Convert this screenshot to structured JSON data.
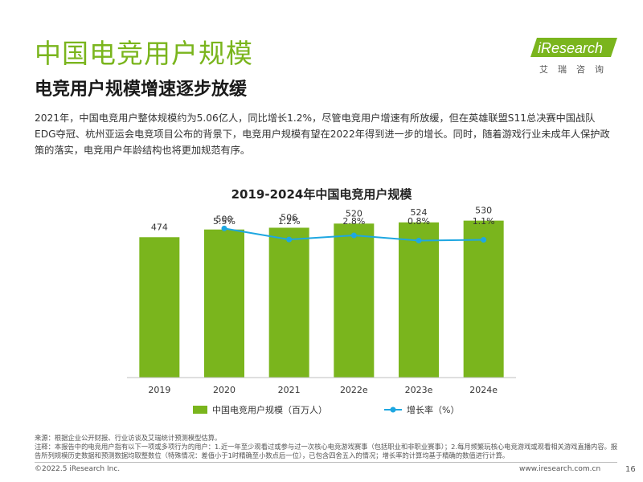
{
  "header": {
    "title": "中国电竞用户规模",
    "subtitle": "电竞用户规模增速逐步放缓"
  },
  "logo": {
    "name": "iResearch",
    "tagline": "艾瑞咨询",
    "brand_color": "#7ab51d"
  },
  "intro_text": "2021年，中国电竞用户整体规模约为5.06亿人，同比增长1.2%，尽管电竞用户增速有所放缓，但在英雄联盟S11总决赛中国战队EDG夺冠、杭州亚运会电竞项目公布的背景下，电竞用户规模有望在2022年得到进一步的增长。同时，随着游戏行业未成年人保护政策的落实，电竞用户年龄结构也将更加规范有序。",
  "chart_data": {
    "type": "bar",
    "title": "2019-2024年中国电竞用户规模",
    "categories": [
      "2019",
      "2020",
      "2021",
      "2022e",
      "2023e",
      "2024e"
    ],
    "series": [
      {
        "name": "中国电竞用户规模（百万人）",
        "type": "bar",
        "values": [
          474,
          500,
          506,
          520,
          524,
          530
        ],
        "labels": [
          "474",
          "500",
          "506",
          "520",
          "524",
          "530"
        ],
        "color": "#7ab51d"
      },
      {
        "name": "增长率（%）",
        "type": "line",
        "values": [
          null,
          5.5,
          1.2,
          2.8,
          0.8,
          1.1
        ],
        "labels": [
          "",
          "5.5%",
          "1.2%",
          "2.8%",
          "0.8%",
          "1.1%"
        ],
        "color": "#1ea7e1"
      }
    ],
    "legend_position": "bottom",
    "grid": false
  },
  "footer": {
    "source": "来源：根据企业公开财报、行业访谈及艾瑞统计预测模型估算。",
    "note": "注释：本报告中的电竞用户指有以下一项或多项行为的用户：1.近一年至少观看过或参与过一次核心电竞游戏赛事（包括职业和非职业赛事）；2.每月频繁玩核心电竞游戏或观看相关游戏直播内容。报告所列规模历史数据和预测数据均取整数位（特殊情况：差值小于1时精确至小数点后一位），已包含四舍五入的情况；增长率的计算均基于精确的数值进行计算。",
    "copyright": "©2022.5 iResearch Inc.",
    "website": "www.iresearch.com.cn",
    "page_number": "16"
  }
}
